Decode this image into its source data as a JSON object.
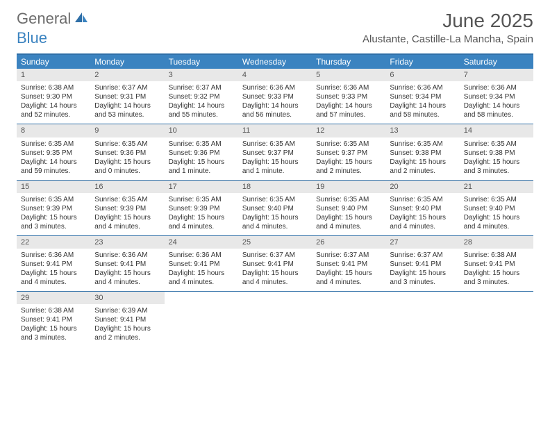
{
  "logo": {
    "text1": "General",
    "text2": "Blue"
  },
  "header": {
    "title": "June 2025",
    "location": "Alustante, Castille-La Mancha, Spain"
  },
  "colors": {
    "header_bg": "#3b83c0",
    "border": "#2f6fa7",
    "daynum_bg": "#e8e8e8",
    "text": "#333333",
    "logo_gray": "#6c6c6c",
    "logo_blue": "#3b83c0"
  },
  "dayNames": [
    "Sunday",
    "Monday",
    "Tuesday",
    "Wednesday",
    "Thursday",
    "Friday",
    "Saturday"
  ],
  "days": [
    {
      "n": 1,
      "sr": "6:38 AM",
      "ss": "9:30 PM",
      "dl": "14 hours and 52 minutes."
    },
    {
      "n": 2,
      "sr": "6:37 AM",
      "ss": "9:31 PM",
      "dl": "14 hours and 53 minutes."
    },
    {
      "n": 3,
      "sr": "6:37 AM",
      "ss": "9:32 PM",
      "dl": "14 hours and 55 minutes."
    },
    {
      "n": 4,
      "sr": "6:36 AM",
      "ss": "9:33 PM",
      "dl": "14 hours and 56 minutes."
    },
    {
      "n": 5,
      "sr": "6:36 AM",
      "ss": "9:33 PM",
      "dl": "14 hours and 57 minutes."
    },
    {
      "n": 6,
      "sr": "6:36 AM",
      "ss": "9:34 PM",
      "dl": "14 hours and 58 minutes."
    },
    {
      "n": 7,
      "sr": "6:36 AM",
      "ss": "9:34 PM",
      "dl": "14 hours and 58 minutes."
    },
    {
      "n": 8,
      "sr": "6:35 AM",
      "ss": "9:35 PM",
      "dl": "14 hours and 59 minutes."
    },
    {
      "n": 9,
      "sr": "6:35 AM",
      "ss": "9:36 PM",
      "dl": "15 hours and 0 minutes."
    },
    {
      "n": 10,
      "sr": "6:35 AM",
      "ss": "9:36 PM",
      "dl": "15 hours and 1 minute."
    },
    {
      "n": 11,
      "sr": "6:35 AM",
      "ss": "9:37 PM",
      "dl": "15 hours and 1 minute."
    },
    {
      "n": 12,
      "sr": "6:35 AM",
      "ss": "9:37 PM",
      "dl": "15 hours and 2 minutes."
    },
    {
      "n": 13,
      "sr": "6:35 AM",
      "ss": "9:38 PM",
      "dl": "15 hours and 2 minutes."
    },
    {
      "n": 14,
      "sr": "6:35 AM",
      "ss": "9:38 PM",
      "dl": "15 hours and 3 minutes."
    },
    {
      "n": 15,
      "sr": "6:35 AM",
      "ss": "9:39 PM",
      "dl": "15 hours and 3 minutes."
    },
    {
      "n": 16,
      "sr": "6:35 AM",
      "ss": "9:39 PM",
      "dl": "15 hours and 4 minutes."
    },
    {
      "n": 17,
      "sr": "6:35 AM",
      "ss": "9:39 PM",
      "dl": "15 hours and 4 minutes."
    },
    {
      "n": 18,
      "sr": "6:35 AM",
      "ss": "9:40 PM",
      "dl": "15 hours and 4 minutes."
    },
    {
      "n": 19,
      "sr": "6:35 AM",
      "ss": "9:40 PM",
      "dl": "15 hours and 4 minutes."
    },
    {
      "n": 20,
      "sr": "6:35 AM",
      "ss": "9:40 PM",
      "dl": "15 hours and 4 minutes."
    },
    {
      "n": 21,
      "sr": "6:35 AM",
      "ss": "9:40 PM",
      "dl": "15 hours and 4 minutes."
    },
    {
      "n": 22,
      "sr": "6:36 AM",
      "ss": "9:41 PM",
      "dl": "15 hours and 4 minutes."
    },
    {
      "n": 23,
      "sr": "6:36 AM",
      "ss": "9:41 PM",
      "dl": "15 hours and 4 minutes."
    },
    {
      "n": 24,
      "sr": "6:36 AM",
      "ss": "9:41 PM",
      "dl": "15 hours and 4 minutes."
    },
    {
      "n": 25,
      "sr": "6:37 AM",
      "ss": "9:41 PM",
      "dl": "15 hours and 4 minutes."
    },
    {
      "n": 26,
      "sr": "6:37 AM",
      "ss": "9:41 PM",
      "dl": "15 hours and 4 minutes."
    },
    {
      "n": 27,
      "sr": "6:37 AM",
      "ss": "9:41 PM",
      "dl": "15 hours and 3 minutes."
    },
    {
      "n": 28,
      "sr": "6:38 AM",
      "ss": "9:41 PM",
      "dl": "15 hours and 3 minutes."
    },
    {
      "n": 29,
      "sr": "6:38 AM",
      "ss": "9:41 PM",
      "dl": "15 hours and 3 minutes."
    },
    {
      "n": 30,
      "sr": "6:39 AM",
      "ss": "9:41 PM",
      "dl": "15 hours and 2 minutes."
    }
  ],
  "labels": {
    "sunrise": "Sunrise:",
    "sunset": "Sunset:",
    "daylight": "Daylight:"
  }
}
